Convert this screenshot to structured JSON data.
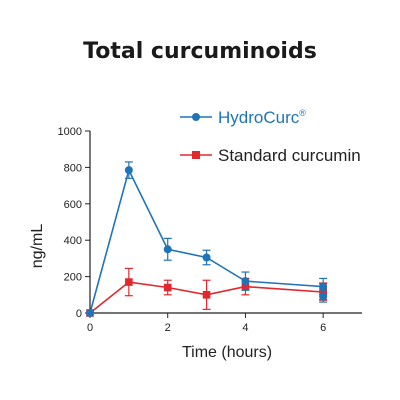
{
  "chart_data": {
    "type": "line",
    "title": "Total curcuminoids",
    "xlabel": "Time (hours)",
    "ylabel": "ng/mL",
    "xlim": [
      0,
      7
    ],
    "ylim": [
      0,
      1000
    ],
    "xticks": [
      "0",
      "2",
      "4",
      "6"
    ],
    "yticks": [
      "0",
      "200",
      "400",
      "600",
      "800",
      "1000"
    ],
    "grid": false,
    "legend_position": "top-right",
    "series": [
      {
        "name": "HydroCurc",
        "name_mark": "®",
        "color": "#1f74b8",
        "marker": "circle",
        "x": [
          0,
          1,
          2,
          3,
          4,
          6,
          6
        ],
        "y": [
          0,
          785,
          350,
          305,
          175,
          145,
          90
        ],
        "err": [
          0,
          45,
          60,
          40,
          50,
          45,
          30
        ]
      },
      {
        "name": "Standard curcumin",
        "color": "#e0282e",
        "marker": "square",
        "x": [
          0,
          1,
          2,
          3,
          4,
          6,
          6
        ],
        "y": [
          0,
          170,
          140,
          100,
          145,
          115,
          120
        ],
        "err": [
          0,
          75,
          40,
          80,
          45,
          45,
          45
        ]
      }
    ]
  }
}
